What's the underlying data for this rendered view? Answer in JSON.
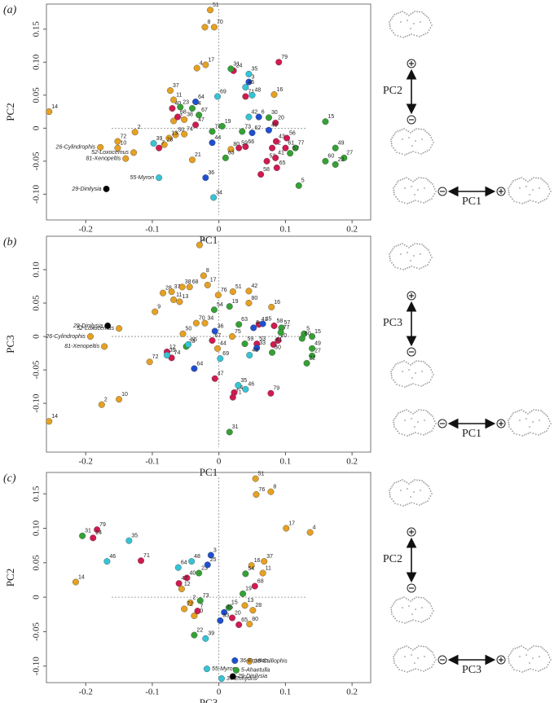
{
  "chart_data": [
    {
      "type": "scatter",
      "panel_label": "(a)",
      "xlabel": "PC1",
      "ylabel": "PC2",
      "xlim": [
        -0.259,
        0.228
      ],
      "ylim": [
        -0.139,
        0.188
      ],
      "xticks": [
        -0.2,
        -0.1,
        0,
        0.1,
        0.2
      ],
      "yticks": [
        0.15,
        {
          "value": 0.1,
          "label": "0.10"
        },
        0.05,
        0,
        -0.05,
        {
          "value": -0.1,
          "label": "-0.10"
        }
      ],
      "shape_axes": {
        "vertical": "PC2",
        "horizontal": "PC1"
      },
      "series": [
        {
          "color": "#e6a122",
          "x": [
            -0.013,
            -0.021,
            -0.007,
            -0.02,
            -0.033,
            -0.073,
            -0.068,
            -0.255,
            0.083,
            -0.068,
            -0.052,
            -0.126,
            -0.152,
            -0.152,
            -0.178,
            -0.128,
            -0.14,
            -0.065,
            -0.052,
            -0.075,
            -0.082,
            -0.04,
            0.018
          ],
          "values": [
            0.179,
            0.153,
            0.153,
            0.096,
            0.091,
            0.057,
            0.043,
            0.025,
            0.051,
            0.011,
            0.013,
            -0.006,
            -0.02,
            -0.03,
            -0.029,
            -0.037,
            -0.046,
            -0.01,
            -0.009,
            -0.015,
            -0.025,
            -0.048,
            -0.032
          ],
          "labels": [
            "51",
            "8",
            "70",
            "17",
            "4",
            "37",
            "11",
            "14",
            "16",
            "12",
            "38",
            "2",
            "72",
            "10",
            "26-Cylindrophis",
            "52-Loxocemus",
            "81-Xenopeltis",
            "50",
            "74",
            "13",
            "28",
            "21",
            "80"
          ]
        },
        {
          "color": "#d01a50",
          "x": [
            0.09,
            0.04,
            -0.035,
            -0.07,
            0.085,
            0.072,
            0.085,
            0.087,
            0.063,
            0.08,
            0.086,
            0.102,
            0.04,
            -0.09,
            0.03,
            0.1,
            -0.062,
            0.022
          ],
          "values": [
            0.1,
            0.048,
            0.005,
            0.03,
            0.008,
            -0.05,
            -0.045,
            -0.06,
            -0.07,
            -0.03,
            -0.02,
            -0.015,
            -0.028,
            -0.03,
            -0.03,
            -0.03,
            0.017,
            0.087
          ],
          "labels": [
            "79",
            "71",
            "47",
            "40",
            "20",
            "53",
            "41",
            "65",
            "58",
            "32",
            "43",
            "56",
            "66",
            "7",
            "59",
            "61",
            "68",
            "24"
          ]
        },
        {
          "color": "#35a135",
          "x": [
            0.018,
            0.16,
            0.175,
            0.188,
            0.175,
            0.16,
            0.12,
            0.075,
            -0.04,
            -0.058,
            0.115,
            0.107,
            0.035,
            0.01,
            -0.01,
            0.005,
            -0.03
          ],
          "values": [
            0.09,
            0.01,
            -0.03,
            -0.045,
            -0.055,
            -0.05,
            -0.087,
            0.016,
            0.03,
            0.032,
            -0.03,
            -0.038,
            -0.005,
            -0.045,
            -0.005,
            0.003,
            0.02
          ],
          "labels": [
            "31",
            "15",
            "49",
            "27",
            "22",
            "60",
            "5",
            "30",
            "54",
            "23",
            "77",
            "57",
            "73",
            "63",
            "78",
            "19",
            "67"
          ]
        },
        {
          "color": "#1f4fd1",
          "x": [
            -0.035,
            0.045,
            0.06,
            0.075,
            0.05,
            -0.02,
            -0.01
          ],
          "values": [
            0.04,
            0.07,
            0.017,
            -0.003,
            -0.007,
            -0.075,
            -0.022
          ],
          "labels": [
            "64",
            "3",
            "6",
            "45",
            "62",
            "36",
            "44"
          ]
        },
        {
          "color": "#35c4d6",
          "x": [
            0.045,
            0.04,
            0.05,
            0.045,
            -0.002,
            -0.098,
            -0.09,
            -0.008
          ],
          "values": [
            0.082,
            0.062,
            0.05,
            0.017,
            0.048,
            -0.023,
            -0.075,
            -0.105
          ],
          "labels": [
            "35",
            "46",
            "48",
            "42",
            "69",
            "39",
            "55-Myron",
            "34"
          ]
        },
        {
          "color": "#000000",
          "x": [
            -0.169
          ],
          "values": [
            -0.092
          ],
          "labels": [
            "29-Dinilysia"
          ]
        }
      ]
    },
    {
      "type": "scatter",
      "panel_label": "(b)",
      "xlabel": "PC1",
      "ylabel": "PC3",
      "xlim": [
        -0.259,
        0.228
      ],
      "ylim": [
        -0.173,
        0.15
      ],
      "xticks": [
        -0.2,
        -0.1,
        0,
        0.1,
        0.2
      ],
      "yticks": [
        {
          "value": 0.1,
          "label": "0.10"
        },
        0.05,
        0,
        -0.05,
        {
          "value": -0.1,
          "label": "-0.10"
        }
      ],
      "shape_axes": {
        "vertical": "PC3",
        "horizontal": "PC1"
      },
      "series": [
        {
          "color": "#e6a122",
          "x": [
            -0.029,
            -0.023,
            -0.017,
            -0.001,
            0.021,
            0.045,
            0.045,
            0.079,
            -0.055,
            -0.044,
            -0.084,
            -0.071,
            -0.068,
            -0.059,
            -0.096,
            -0.193,
            -0.15,
            -0.172,
            -0.104,
            -0.176,
            -0.15,
            -0.255,
            -0.054,
            -0.034,
            -0.021,
            0.02,
            -0.002
          ],
          "values": [
            0.137,
            0.091,
            0.077,
            0.062,
            0.067,
            0.068,
            0.05,
            0.044,
            0.074,
            0.074,
            0.065,
            0.067,
            0.055,
            0.052,
            0.037,
            0.0,
            0.012,
            -0.015,
            -0.038,
            -0.102,
            -0.094,
            -0.127,
            0.004,
            0.02,
            0.02,
            0.0,
            -0.018
          ],
          "labels": [
            "4",
            "8",
            "17",
            "76",
            "51",
            "42",
            "80",
            "16",
            "38",
            "68",
            "28",
            "37",
            "11",
            "13",
            "9",
            "26-Cylindrophis",
            "52-Loxocemus",
            "81-Xenopeltis",
            "72",
            "2",
            "10",
            "14",
            "50",
            "70",
            "34",
            "75",
            "44"
          ]
        },
        {
          "color": "#d01a50",
          "x": [
            0.078,
            0.021,
            -0.006,
            -0.071,
            -0.078,
            -0.01,
            0.089,
            0.057,
            0.082,
            0.06,
            0.083,
            0.023
          ],
          "values": [
            -0.085,
            -0.091,
            -0.063,
            -0.032,
            -0.023,
            -0.006,
            -0.006,
            -0.011,
            -0.012,
            0.018,
            0.016,
            -0.084
          ],
          "labels": [
            "79",
            "71",
            "47",
            "74",
            "12",
            "67",
            "20",
            "53",
            "61",
            "41",
            "58",
            "24"
          ]
        },
        {
          "color": "#35a135",
          "x": [
            0.016,
            0.128,
            0.14,
            0.14,
            0.14,
            0.132,
            0.094,
            0.093,
            -0.007,
            0.016,
            0.03,
            0.039,
            -0.049,
            0.08,
            0.125
          ],
          "values": [
            -0.143,
            0.004,
            0.0,
            -0.018,
            -0.029,
            -0.04,
            0.013,
            0.006,
            0.04,
            0.045,
            0.018,
            -0.011,
            -0.015,
            -0.024,
            -0.003
          ],
          "labels": [
            "31",
            "5",
            "15",
            "49",
            "27",
            "22",
            "57",
            "77",
            "54",
            "19",
            "63",
            "59",
            "23",
            "30",
            "60"
          ]
        },
        {
          "color": "#1f4fd1",
          "x": [
            -0.037,
            0.057,
            0.066,
            0.052,
            -0.006
          ],
          "values": [
            -0.048,
            -0.017,
            0.019,
            0.013,
            0.008
          ],
          "labels": [
            "64",
            "33",
            "45",
            "6",
            "36"
          ]
        },
        {
          "color": "#35c4d6",
          "x": [
            0.029,
            0.04,
            0.002,
            0.046,
            -0.078,
            -0.046
          ],
          "values": [
            -0.073,
            -0.079,
            -0.033,
            -0.028,
            -0.028,
            -0.012
          ],
          "labels": [
            "35",
            "46",
            "69",
            "48",
            "39",
            "55"
          ]
        },
        {
          "color": "#000000",
          "x": [
            -0.167
          ],
          "values": [
            0.016
          ],
          "labels": [
            "29-Dinilysia"
          ]
        }
      ]
    },
    {
      "type": "scatter",
      "panel_label": "(c)",
      "xlabel": "PC3",
      "ylabel": "PC2",
      "xlim": [
        -0.259,
        0.228
      ],
      "ylim": [
        -0.124,
        0.181
      ],
      "xticks": [
        -0.2,
        -0.1,
        0,
        0.1,
        0.2
      ],
      "yticks": [
        0.15,
        {
          "value": 0.1,
          "label": "0.10"
        },
        0.05,
        0,
        -0.05,
        {
          "value": -0.1,
          "label": "-0.10"
        }
      ],
      "shape_axes": {
        "vertical": "PC2",
        "horizontal": "PC3"
      },
      "series": [
        {
          "color": "#e6a122",
          "x": [
            0.055,
            0.056,
            0.078,
            0.101,
            0.137,
            0.068,
            0.049,
            0.066,
            -0.215,
            -0.043,
            -0.037,
            -0.056,
            0.046,
            0.051,
            0.039,
            0.046,
            -0.052
          ],
          "values": [
            0.172,
            0.149,
            0.153,
            0.1,
            0.094,
            0.052,
            0.046,
            0.035,
            0.022,
            -0.008,
            -0.027,
            0.012,
            -0.039,
            -0.019,
            -0.012,
            -0.093,
            -0.017
          ],
          "labels": [
            "51",
            "76",
            "8",
            "17",
            "4",
            "37",
            "16",
            "11",
            "14",
            "2",
            "10",
            "12",
            "80",
            "28",
            "13",
            "18-Calliophis",
            "72"
          ]
        },
        {
          "color": "#d01a50",
          "x": [
            -0.183,
            -0.189,
            -0.117,
            0.054,
            -0.048,
            -0.06,
            -0.032,
            0.02,
            0.03
          ],
          "values": [
            0.098,
            0.086,
            0.053,
            0.016,
            0.028,
            0.02,
            -0.02,
            -0.03,
            -0.04
          ],
          "labels": [
            "79",
            "24",
            "71",
            "68",
            "40",
            "47",
            "7",
            "20",
            "65"
          ]
        },
        {
          "color": "#35c4d6",
          "x": [
            -0.135,
            -0.168,
            -0.041,
            -0.018,
            0.004,
            -0.061,
            -0.02
          ],
          "values": [
            0.082,
            0.052,
            0.052,
            -0.104,
            -0.118,
            0.043,
            -0.06
          ],
          "labels": [
            "35",
            "46",
            "48",
            "55-Myron",
            "34-Enhydris",
            "64",
            "39"
          ]
        },
        {
          "color": "#35a135",
          "x": [
            -0.205,
            0.04,
            -0.03,
            -0.037,
            0.026,
            0.036,
            0.015,
            -0.028
          ],
          "values": [
            0.089,
            0.034,
            0.035,
            -0.055,
            -0.106,
            0.005,
            -0.015,
            -0.005
          ],
          "labels": [
            "31",
            "54",
            "23",
            "22",
            "5-Ahaetulla",
            "19",
            "15",
            "73"
          ]
        },
        {
          "color": "#1f4fd1",
          "x": [
            -0.012,
            -0.017,
            0.024,
            0.008,
            0.002
          ],
          "values": [
            0.061,
            0.047,
            -0.092,
            -0.022,
            -0.034
          ],
          "labels": [
            "3",
            "25",
            "36-Erpeton",
            "45",
            "33"
          ]
        },
        {
          "color": "#000000",
          "x": [
            0.021
          ],
          "values": [
            -0.115
          ],
          "labels": [
            "29-Dinilysia"
          ]
        }
      ]
    }
  ]
}
